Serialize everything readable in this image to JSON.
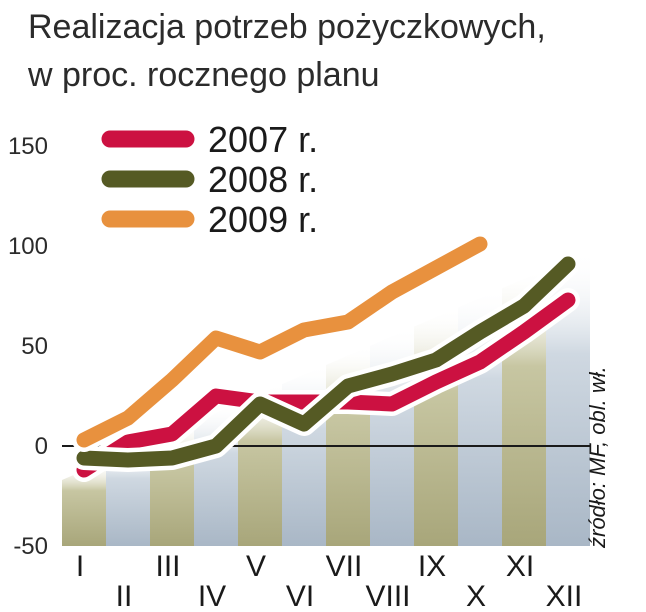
{
  "chart_data": {
    "type": "line",
    "title": "Realizacja potrzeb pożyczkowych,",
    "subtitle": "w proc. rocznego planu",
    "categories": [
      "I",
      "II",
      "III",
      "IV",
      "V",
      "VI",
      "VII",
      "VIII",
      "IX",
      "X",
      "XI",
      "XII"
    ],
    "yticks": [
      150,
      100,
      50,
      0,
      -50
    ],
    "ylim": [
      -50,
      150
    ],
    "legend_position": "top-left",
    "series": [
      {
        "name": "2007 r.",
        "color": "#cc1141",
        "values": [
          -12,
          2,
          6,
          25,
          22,
          22,
          22,
          21,
          32,
          42,
          57,
          73
        ]
      },
      {
        "name": "2008 r.",
        "color": "#555a24",
        "values": [
          -6,
          -7,
          -6,
          0,
          21,
          11,
          30,
          36,
          43,
          57,
          70,
          91
        ]
      },
      {
        "name": "2009 r.",
        "color": "#e8913e",
        "values": [
          3,
          14,
          33,
          54,
          47,
          58,
          62,
          77,
          89,
          101,
          null,
          null
        ]
      }
    ],
    "source": "źródło: MF, obl. wł."
  }
}
